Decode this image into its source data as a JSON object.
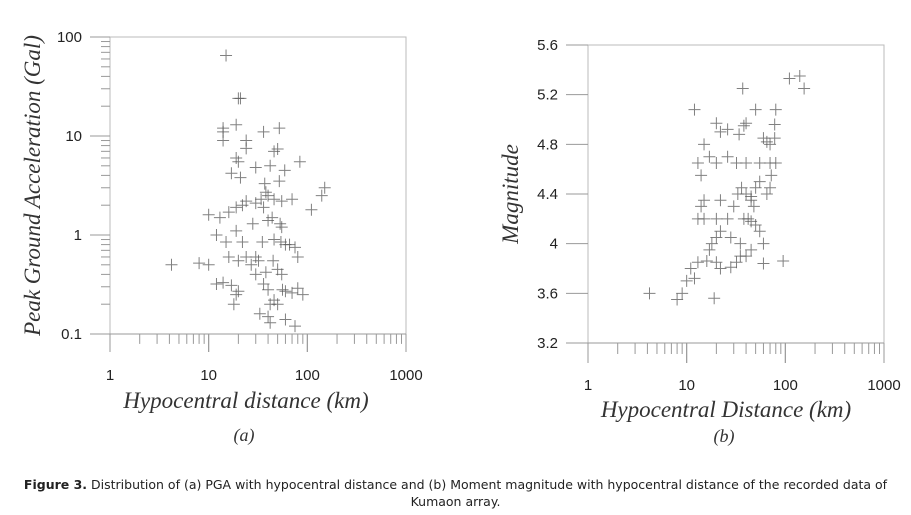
{
  "chart_data": [
    {
      "type": "scatter",
      "panel_label": "(a)",
      "xlabel": "Hypocentral distance (km)",
      "ylabel": "Peak Ground Acceleration (Gal)",
      "xscale": "log",
      "yscale": "log",
      "xlim": [
        1,
        1000
      ],
      "ylim": [
        0.1,
        100
      ],
      "xticks": [
        "1",
        "10",
        "100",
        "1000"
      ],
      "yticks": [
        "0.1",
        "1",
        "10",
        "100"
      ],
      "grid": false,
      "marker": "plus",
      "marker_color": "#555555",
      "points": [
        [
          15,
          65
        ],
        [
          20,
          24
        ],
        [
          21,
          24
        ],
        [
          14,
          12
        ],
        [
          14,
          11
        ],
        [
          19,
          13
        ],
        [
          14,
          9
        ],
        [
          24,
          9
        ],
        [
          36,
          11
        ],
        [
          52,
          12
        ],
        [
          24,
          7.5
        ],
        [
          46,
          7
        ],
        [
          50,
          7.4
        ],
        [
          84,
          5.5
        ],
        [
          20,
          5.5
        ],
        [
          19,
          6
        ],
        [
          30,
          4.8
        ],
        [
          42,
          5
        ],
        [
          59,
          4.5
        ],
        [
          17,
          4.2
        ],
        [
          21,
          3.8
        ],
        [
          37,
          3.3
        ],
        [
          52,
          3.5
        ],
        [
          150,
          3
        ],
        [
          140,
          2.5
        ],
        [
          38,
          2.7
        ],
        [
          40,
          2.5
        ],
        [
          34,
          2.3
        ],
        [
          46,
          2.3
        ],
        [
          55,
          2.2
        ],
        [
          30,
          2.1
        ],
        [
          24,
          2.2
        ],
        [
          22,
          2.0
        ],
        [
          19,
          1.9
        ],
        [
          110,
          1.8
        ],
        [
          16,
          1.7
        ],
        [
          13,
          1.5
        ],
        [
          10,
          1.6
        ],
        [
          36,
          1.9
        ],
        [
          70,
          2.3
        ],
        [
          40,
          1.4
        ],
        [
          28,
          1.3
        ],
        [
          44,
          1.5
        ],
        [
          53,
          1.3
        ],
        [
          55,
          1.2
        ],
        [
          19,
          1.1
        ],
        [
          12,
          1.0
        ],
        [
          15,
          0.85
        ],
        [
          22,
          0.85
        ],
        [
          35,
          0.85
        ],
        [
          46,
          0.9
        ],
        [
          54,
          0.85
        ],
        [
          60,
          0.8
        ],
        [
          75,
          0.75
        ],
        [
          80,
          0.6
        ],
        [
          66,
          0.8
        ],
        [
          4.2,
          0.5
        ],
        [
          8,
          0.52
        ],
        [
          10,
          0.5
        ],
        [
          20,
          0.55
        ],
        [
          27,
          0.5
        ],
        [
          32,
          0.55
        ],
        [
          16,
          0.6
        ],
        [
          24,
          0.6
        ],
        [
          45,
          0.55
        ],
        [
          30,
          0.6
        ],
        [
          38,
          0.42
        ],
        [
          50,
          0.45
        ],
        [
          55,
          0.4
        ],
        [
          14,
          0.33
        ],
        [
          17,
          0.31
        ],
        [
          12,
          0.32
        ],
        [
          20,
          0.27
        ],
        [
          19,
          0.25
        ],
        [
          18,
          0.2
        ],
        [
          30,
          0.4
        ],
        [
          36,
          0.32
        ],
        [
          40,
          0.28
        ],
        [
          46,
          0.22
        ],
        [
          56,
          0.28
        ],
        [
          60,
          0.27
        ],
        [
          70,
          0.26
        ],
        [
          80,
          0.29
        ],
        [
          90,
          0.25
        ],
        [
          42,
          0.2
        ],
        [
          50,
          0.2
        ],
        [
          40,
          0.15
        ],
        [
          42,
          0.13
        ],
        [
          60,
          0.14
        ],
        [
          75,
          0.12
        ],
        [
          33,
          0.16
        ]
      ]
    },
    {
      "type": "scatter",
      "panel_label": "(b)",
      "xlabel": "Hypocentral Distance (km)",
      "ylabel": "Magnitude",
      "xscale": "log",
      "yscale": "linear",
      "xlim": [
        1,
        1000
      ],
      "ylim": [
        3.2,
        5.6
      ],
      "xticks": [
        "1",
        "10",
        "100",
        "1000"
      ],
      "yticks": [
        "3.2",
        "3.6",
        "4",
        "4.4",
        "4.8",
        "5.2",
        "5.6"
      ],
      "grid": false,
      "marker": "plus",
      "marker_color": "#555555",
      "points": [
        [
          4.2,
          3.6
        ],
        [
          8,
          3.55
        ],
        [
          9,
          3.6
        ],
        [
          10,
          3.7
        ],
        [
          12,
          3.72
        ],
        [
          11,
          3.8
        ],
        [
          13,
          3.85
        ],
        [
          16,
          3.86
        ],
        [
          19,
          3.56
        ],
        [
          20,
          3.85
        ],
        [
          22,
          3.8
        ],
        [
          28,
          3.81
        ],
        [
          32,
          3.85
        ],
        [
          35,
          3.9
        ],
        [
          40,
          3.9
        ],
        [
          60,
          3.84
        ],
        [
          95,
          3.86
        ],
        [
          17,
          3.95
        ],
        [
          18,
          4.0
        ],
        [
          20,
          4.05
        ],
        [
          22,
          4.1
        ],
        [
          15,
          4.2
        ],
        [
          13,
          4.2
        ],
        [
          20,
          4.2
        ],
        [
          26,
          4.2
        ],
        [
          38,
          4.2
        ],
        [
          42,
          4.2
        ],
        [
          45,
          4.18
        ],
        [
          50,
          4.15
        ],
        [
          55,
          4.1
        ],
        [
          60,
          4.0
        ],
        [
          14,
          4.3
        ],
        [
          15,
          4.35
        ],
        [
          22,
          4.35
        ],
        [
          30,
          4.3
        ],
        [
          33,
          4.4
        ],
        [
          36,
          4.45
        ],
        [
          40,
          4.4
        ],
        [
          45,
          4.35
        ],
        [
          50,
          4.45
        ],
        [
          55,
          4.5
        ],
        [
          65,
          4.4
        ],
        [
          70,
          4.45
        ],
        [
          72,
          4.55
        ],
        [
          14,
          4.55
        ],
        [
          13,
          4.65
        ],
        [
          17,
          4.7
        ],
        [
          20,
          4.65
        ],
        [
          26,
          4.7
        ],
        [
          32,
          4.65
        ],
        [
          40,
          4.65
        ],
        [
          55,
          4.65
        ],
        [
          70,
          4.65
        ],
        [
          80,
          4.65
        ],
        [
          15,
          4.8
        ],
        [
          22,
          4.9
        ],
        [
          26,
          4.92
        ],
        [
          34,
          4.88
        ],
        [
          38,
          4.95
        ],
        [
          40,
          4.97
        ],
        [
          60,
          4.85
        ],
        [
          65,
          4.82
        ],
        [
          70,
          4.8
        ],
        [
          78,
          4.85
        ],
        [
          20,
          4.97
        ],
        [
          12,
          5.08
        ],
        [
          50,
          5.08
        ],
        [
          80,
          5.08
        ],
        [
          78,
          4.96
        ],
        [
          37,
          5.25
        ],
        [
          110,
          5.33
        ],
        [
          140,
          5.35
        ],
        [
          155,
          5.25
        ],
        [
          45,
          4.38
        ],
        [
          48,
          4.3
        ],
        [
          35,
          4.0
        ],
        [
          28,
          4.05
        ],
        [
          45,
          3.95
        ]
      ]
    }
  ],
  "caption": {
    "label": "Figure 3.",
    "text": " Distribution of (a) PGA with hypocentral distance and (b) Moment magnitude with hypocentral distance of the recorded data of Kumaon array."
  }
}
